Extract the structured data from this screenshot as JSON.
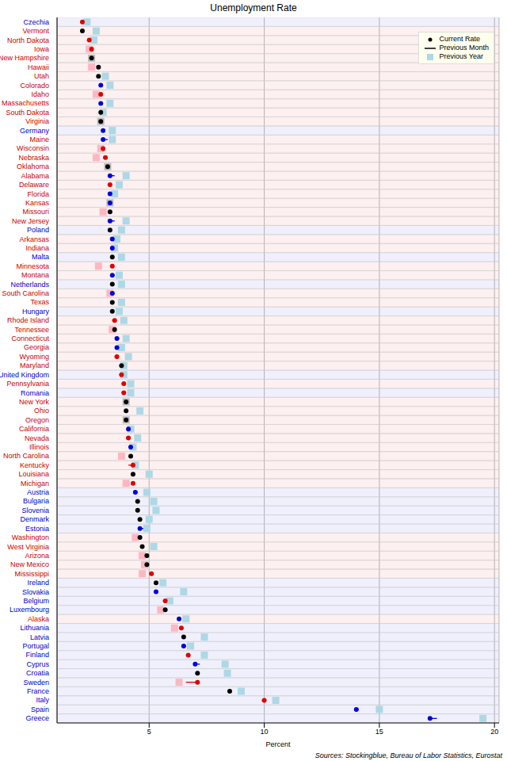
{
  "chart_data": {
    "type": "dot",
    "title": "Unemployment Rate",
    "x_label": "Percent",
    "annotations": [
      "Sources: Stockingblue, Bureau of Labor Statistics, Eurostat"
    ],
    "orientation": "horizontal",
    "grid": true,
    "legend": "top-right",
    "xlim": [
      1,
      20.2
    ],
    "xticks": [
      5,
      10,
      15,
      20
    ],
    "categories": [
      "Czechia",
      "Vermont",
      "North Dakota",
      "Iowa",
      "New Hampshire",
      "Hawaii",
      "Utah",
      "Colorado",
      "Idaho",
      "Massachusetts",
      "South Dakota",
      "Virginia",
      "Germany",
      "Maine",
      "Wisconsin",
      "Nebraska",
      "Oklahoma",
      "Alabama",
      "Delaware",
      "Florida",
      "Kansas",
      "Missouri",
      "New Jersey",
      "Poland",
      "Arkansas",
      "Indiana",
      "Malta",
      "Minnesota",
      "Montana",
      "Netherlands",
      "South Carolina",
      "Texas",
      "Hungary",
      "Rhode Island",
      "Tennessee",
      "Connecticut",
      "Georgia",
      "Wyoming",
      "Maryland",
      "United Kingdom",
      "Pennsylvania",
      "Romania",
      "New York",
      "Ohio",
      "Oregon",
      "California",
      "Nevada",
      "Illinois",
      "North Carolina",
      "Kentucky",
      "Louisiana",
      "Michigan",
      "Austria",
      "Bulgaria",
      "Slovenia",
      "Denmark",
      "Estonia",
      "Washington",
      "West Virginia",
      "Arizona",
      "New Mexico",
      "Mississippi",
      "Ireland",
      "Slovakia",
      "Belgium",
      "Luxembourg",
      "Alaska",
      "Lithuania",
      "Latvia",
      "Portugal",
      "Finland",
      "Cyprus",
      "Croatia",
      "Sweden",
      "France",
      "Italy",
      "Spain",
      "Greece"
    ],
    "colors": [
      "#0000cc",
      "#cc0000",
      "#cc0000",
      "#cc0000",
      "#cc0000",
      "#cc0000",
      "#cc0000",
      "#cc0000",
      "#cc0000",
      "#cc0000",
      "#cc0000",
      "#cc0000",
      "#0000cc",
      "#cc0000",
      "#cc0000",
      "#cc0000",
      "#cc0000",
      "#cc0000",
      "#cc0000",
      "#cc0000",
      "#cc0000",
      "#cc0000",
      "#cc0000",
      "#0000cc",
      "#cc0000",
      "#cc0000",
      "#0000cc",
      "#cc0000",
      "#cc0000",
      "#0000cc",
      "#cc0000",
      "#cc0000",
      "#0000cc",
      "#cc0000",
      "#cc0000",
      "#cc0000",
      "#cc0000",
      "#cc0000",
      "#cc0000",
      "#0000cc",
      "#cc0000",
      "#0000cc",
      "#cc0000",
      "#cc0000",
      "#cc0000",
      "#cc0000",
      "#cc0000",
      "#cc0000",
      "#cc0000",
      "#cc0000",
      "#cc0000",
      "#cc0000",
      "#0000cc",
      "#0000cc",
      "#0000cc",
      "#0000cc",
      "#0000cc",
      "#cc0000",
      "#cc0000",
      "#cc0000",
      "#cc0000",
      "#cc0000",
      "#0000cc",
      "#0000cc",
      "#0000cc",
      "#0000cc",
      "#cc0000",
      "#0000cc",
      "#0000cc",
      "#0000cc",
      "#0000cc",
      "#0000cc",
      "#0000cc",
      "#0000cc",
      "#0000cc",
      "#0000cc",
      "#0000cc",
      "#0000cc"
    ],
    "series": [
      {
        "name": "Current Rate",
        "color": "#000000",
        "marker": "circle",
        "values": [
          2.1,
          2.1,
          2.4,
          2.5,
          2.5,
          2.8,
          2.8,
          2.9,
          2.9,
          2.9,
          2.9,
          2.9,
          3.0,
          3.0,
          3.0,
          3.1,
          3.2,
          3.3,
          3.3,
          3.3,
          3.3,
          3.3,
          3.3,
          3.3,
          3.4,
          3.4,
          3.4,
          3.4,
          3.4,
          3.4,
          3.4,
          3.4,
          3.4,
          3.5,
          3.5,
          3.6,
          3.6,
          3.6,
          3.8,
          3.8,
          3.9,
          3.9,
          4.0,
          4.0,
          4.0,
          4.1,
          4.1,
          4.2,
          4.2,
          4.3,
          4.3,
          4.3,
          4.4,
          4.5,
          4.5,
          4.6,
          4.6,
          4.6,
          4.7,
          4.9,
          4.9,
          5.1,
          5.3,
          5.3,
          5.7,
          5.7,
          6.3,
          6.4,
          6.5,
          6.5,
          6.7,
          7.0,
          7.1,
          7.1,
          8.5,
          10.0,
          14.0,
          17.2
        ]
      },
      {
        "name": "Previous Month",
        "color": "#000000",
        "line_style": "solid",
        "values": [
          2.0,
          2.1,
          2.3,
          2.4,
          2.5,
          2.8,
          2.8,
          3.0,
          2.8,
          3.0,
          2.9,
          2.9,
          3.1,
          3.2,
          2.9,
          3.0,
          3.2,
          3.5,
          3.2,
          3.4,
          3.4,
          3.3,
          3.5,
          3.3,
          3.5,
          3.5,
          3.4,
          3.3,
          3.5,
          3.4,
          3.5,
          3.4,
          3.4,
          3.4,
          3.5,
          3.7,
          3.7,
          3.5,
          3.8,
          3.7,
          3.8,
          3.8,
          4.0,
          4.0,
          4.0,
          4.2,
          4.0,
          4.3,
          4.2,
          4.1,
          4.3,
          4.2,
          4.5,
          4.5,
          4.5,
          4.6,
          5.0,
          4.6,
          4.7,
          4.9,
          4.9,
          5.0,
          5.3,
          5.4,
          5.6,
          5.7,
          6.4,
          6.3,
          6.5,
          6.6,
          6.6,
          7.2,
          7.1,
          6.6,
          8.5,
          9.9,
          14.1,
          17.5
        ]
      },
      {
        "name": "Previous Year",
        "color": "#add8e6",
        "marker": "square",
        "values": [
          2.3,
          2.7,
          2.6,
          2.4,
          2.5,
          2.5,
          3.1,
          3.3,
          2.7,
          3.3,
          3.0,
          2.9,
          3.4,
          3.4,
          2.9,
          2.7,
          3.2,
          4.0,
          3.7,
          3.5,
          3.3,
          3.0,
          4.0,
          3.8,
          3.6,
          3.5,
          3.8,
          2.8,
          3.7,
          3.8,
          3.3,
          3.8,
          3.7,
          3.9,
          3.4,
          4.0,
          3.8,
          4.1,
          3.9,
          3.9,
          4.2,
          4.2,
          4.0,
          4.6,
          4.0,
          4.2,
          4.5,
          4.3,
          3.8,
          4.4,
          5.0,
          4.0,
          4.9,
          5.2,
          5.3,
          5.0,
          4.9,
          4.4,
          5.2,
          4.7,
          4.8,
          4.7,
          5.6,
          6.5,
          5.9,
          5.5,
          6.6,
          6.1,
          7.4,
          6.8,
          7.4,
          8.3,
          8.4,
          6.3,
          9.0,
          10.5,
          15.0,
          19.5
        ]
      }
    ]
  }
}
